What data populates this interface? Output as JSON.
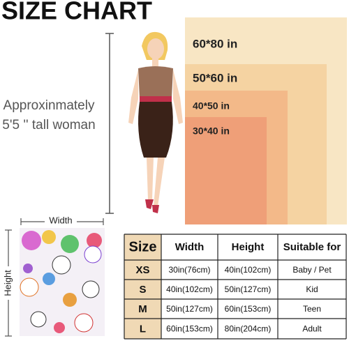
{
  "header": {
    "title": "SIZE CHART"
  },
  "model_note": {
    "lines": [
      "Approxinmately",
      "5'5 '' tall woman"
    ]
  },
  "blanket_sizes": [
    "60*80 in",
    "50*60 in",
    "40*50 in",
    "30*40 in"
  ],
  "dimensions": {
    "width": "Width",
    "height": "Height"
  },
  "table": {
    "headers": [
      "Size",
      "Width",
      "Height",
      "Suitable for"
    ],
    "rows": [
      [
        "XS",
        "30in(76cm)",
        "40in(102cm)",
        "Baby / Pet"
      ],
      [
        "S",
        "40in(102cm)",
        "50in(127cm)",
        "Kid"
      ],
      [
        "M",
        "50in(127cm)",
        "60in(153cm)",
        "Teen"
      ],
      [
        "L",
        "60in(153cm)",
        "80in(204cm)",
        "Adult"
      ]
    ]
  }
}
